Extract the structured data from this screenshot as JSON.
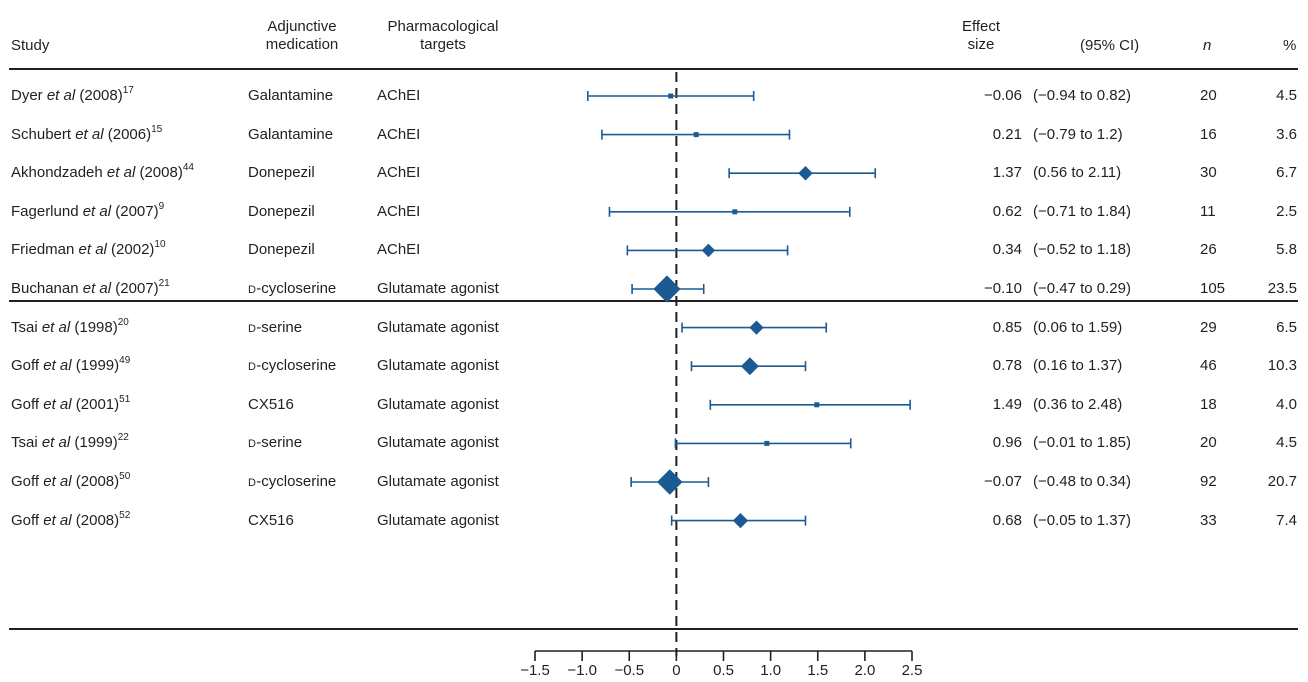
{
  "headers": {
    "study": "Study",
    "medication": [
      "Adjunctive",
      "medication"
    ],
    "targets": [
      "Pharmacological",
      "targets"
    ],
    "effect": [
      "Effect",
      "size"
    ],
    "ci": "(95% CI)",
    "n": "n",
    "pct": "%"
  },
  "rows": [
    {
      "author": "Dyer ",
      "etal": "et al",
      "year": " (2008)",
      "ref": "17",
      "med_sc": "",
      "med": "Galantamine",
      "target": "AChEI",
      "es": "−0.06",
      "ci": "(−0.94 to 0.82)",
      "n": "20",
      "pct": "4.5"
    },
    {
      "author": "Schubert ",
      "etal": "et al",
      "year": " (2006)",
      "ref": "15",
      "med_sc": "",
      "med": "Galantamine",
      "target": "AChEI",
      "es": "0.21",
      "ci": "(−0.79 to 1.2)",
      "n": "16",
      "pct": "3.6"
    },
    {
      "author": "Akhondzadeh ",
      "etal": "et al",
      "year": " (2008)",
      "ref": "44",
      "med_sc": "",
      "med": "Donepezil",
      "target": "AChEI",
      "es": "1.37",
      "ci": "(0.56 to 2.11)",
      "n": "30",
      "pct": "6.7"
    },
    {
      "author": "Fagerlund ",
      "etal": "et al",
      "year": " (2007)",
      "ref": "9",
      "med_sc": "",
      "med": "Donepezil",
      "target": "AChEI",
      "es": "0.62",
      "ci": "(−0.71 to 1.84)",
      "n": "11",
      "pct": "2.5"
    },
    {
      "author": "Friedman ",
      "etal": "et al",
      "year": " (2002)",
      "ref": "10",
      "med_sc": "",
      "med": "Donepezil",
      "target": "AChEI",
      "es": "0.34",
      "ci": "(−0.52 to 1.18)",
      "n": "26",
      "pct": "5.8"
    },
    {
      "author": "Buchanan ",
      "etal": "et al",
      "year": " (2007)",
      "ref": "21",
      "med_sc": "D",
      "med": "-cycloserine",
      "target": "Glutamate agonist",
      "es": "−0.10",
      "ci": "(−0.47 to 0.29)",
      "n": "105",
      "pct": "23.5"
    },
    {
      "author": "Tsai ",
      "etal": "et al",
      "year": " (1998)",
      "ref": "20",
      "med_sc": "D",
      "med": "-serine",
      "target": "Glutamate agonist",
      "es": "0.85",
      "ci": "(0.06 to 1.59)",
      "n": "29",
      "pct": "6.5"
    },
    {
      "author": "Goff ",
      "etal": "et al",
      "year": " (1999)",
      "ref": "49",
      "med_sc": "D",
      "med": "-cycloserine",
      "target": "Glutamate agonist",
      "es": "0.78",
      "ci": "(0.16 to 1.37)",
      "n": "46",
      "pct": "10.3"
    },
    {
      "author": "Goff ",
      "etal": "et al",
      "year": " (2001)",
      "ref": "51",
      "med_sc": "",
      "med": "CX516",
      "target": "Glutamate agonist",
      "es": "1.49",
      "ci": "(0.36 to 2.48)",
      "n": "18",
      "pct": "4.0"
    },
    {
      "author": "Tsai ",
      "etal": "et al",
      "year": " (1999)",
      "ref": "22",
      "med_sc": "D",
      "med": "-serine",
      "target": "Glutamate agonist",
      "es": "0.96",
      "ci": "(−0.01 to 1.85)",
      "n": "20",
      "pct": "4.5"
    },
    {
      "author": "Goff ",
      "etal": "et al",
      "year": " (2008)",
      "ref": "50",
      "med_sc": "D",
      "med": "-cycloserine",
      "target": "Glutamate agonist",
      "es": "−0.07",
      "ci": "(−0.48 to 0.34)",
      "n": "92",
      "pct": "20.7"
    },
    {
      "author": "Goff ",
      "etal": "et al",
      "year": " (2008)",
      "ref": "52",
      "med_sc": "",
      "med": "CX516",
      "target": "Glutamate agonist",
      "es": "0.68",
      "ci": "(−0.05 to 1.37)",
      "n": "33",
      "pct": "7.4"
    }
  ],
  "chart_data": {
    "type": "scatter",
    "subtype": "forest",
    "xlim": [
      -1.5,
      2.5
    ],
    "xticks": [
      -1.5,
      -1.0,
      -0.5,
      0,
      0.5,
      1.0,
      1.5,
      2.0,
      2.5
    ],
    "xtick_labels": [
      "−1.5",
      "−1.0",
      "−0.5",
      "0",
      "0.5",
      "1.0",
      "1.5",
      "2.0",
      "2.5"
    ],
    "reference_line": 0,
    "groups": [
      {
        "name": "AChEI",
        "rows": [
          0,
          1,
          2,
          3,
          4
        ]
      },
      {
        "name": "Glutamate agonist",
        "rows": [
          5,
          6,
          7,
          8,
          9,
          10,
          11
        ]
      }
    ],
    "points": [
      {
        "es": -0.06,
        "lo": -0.94,
        "hi": 0.82,
        "weight": 4.5
      },
      {
        "es": 0.21,
        "lo": -0.79,
        "hi": 1.2,
        "weight": 3.6
      },
      {
        "es": 1.37,
        "lo": 0.56,
        "hi": 2.11,
        "weight": 6.7
      },
      {
        "es": 0.62,
        "lo": -0.71,
        "hi": 1.84,
        "weight": 2.5
      },
      {
        "es": 0.34,
        "lo": -0.52,
        "hi": 1.18,
        "weight": 5.8
      },
      {
        "es": -0.1,
        "lo": -0.47,
        "hi": 0.29,
        "weight": 23.5
      },
      {
        "es": 0.85,
        "lo": 0.06,
        "hi": 1.59,
        "weight": 6.5
      },
      {
        "es": 0.78,
        "lo": 0.16,
        "hi": 1.37,
        "weight": 10.3
      },
      {
        "es": 1.49,
        "lo": 0.36,
        "hi": 2.48,
        "weight": 4.0
      },
      {
        "es": 0.96,
        "lo": -0.01,
        "hi": 1.85,
        "weight": 4.5
      },
      {
        "es": -0.07,
        "lo": -0.48,
        "hi": 0.34,
        "weight": 20.7
      },
      {
        "es": 0.68,
        "lo": -0.05,
        "hi": 1.37,
        "weight": 7.4
      }
    ],
    "colors": {
      "marker": "#1c5a93",
      "line": "#1c5a93",
      "text": "#231f20"
    }
  }
}
